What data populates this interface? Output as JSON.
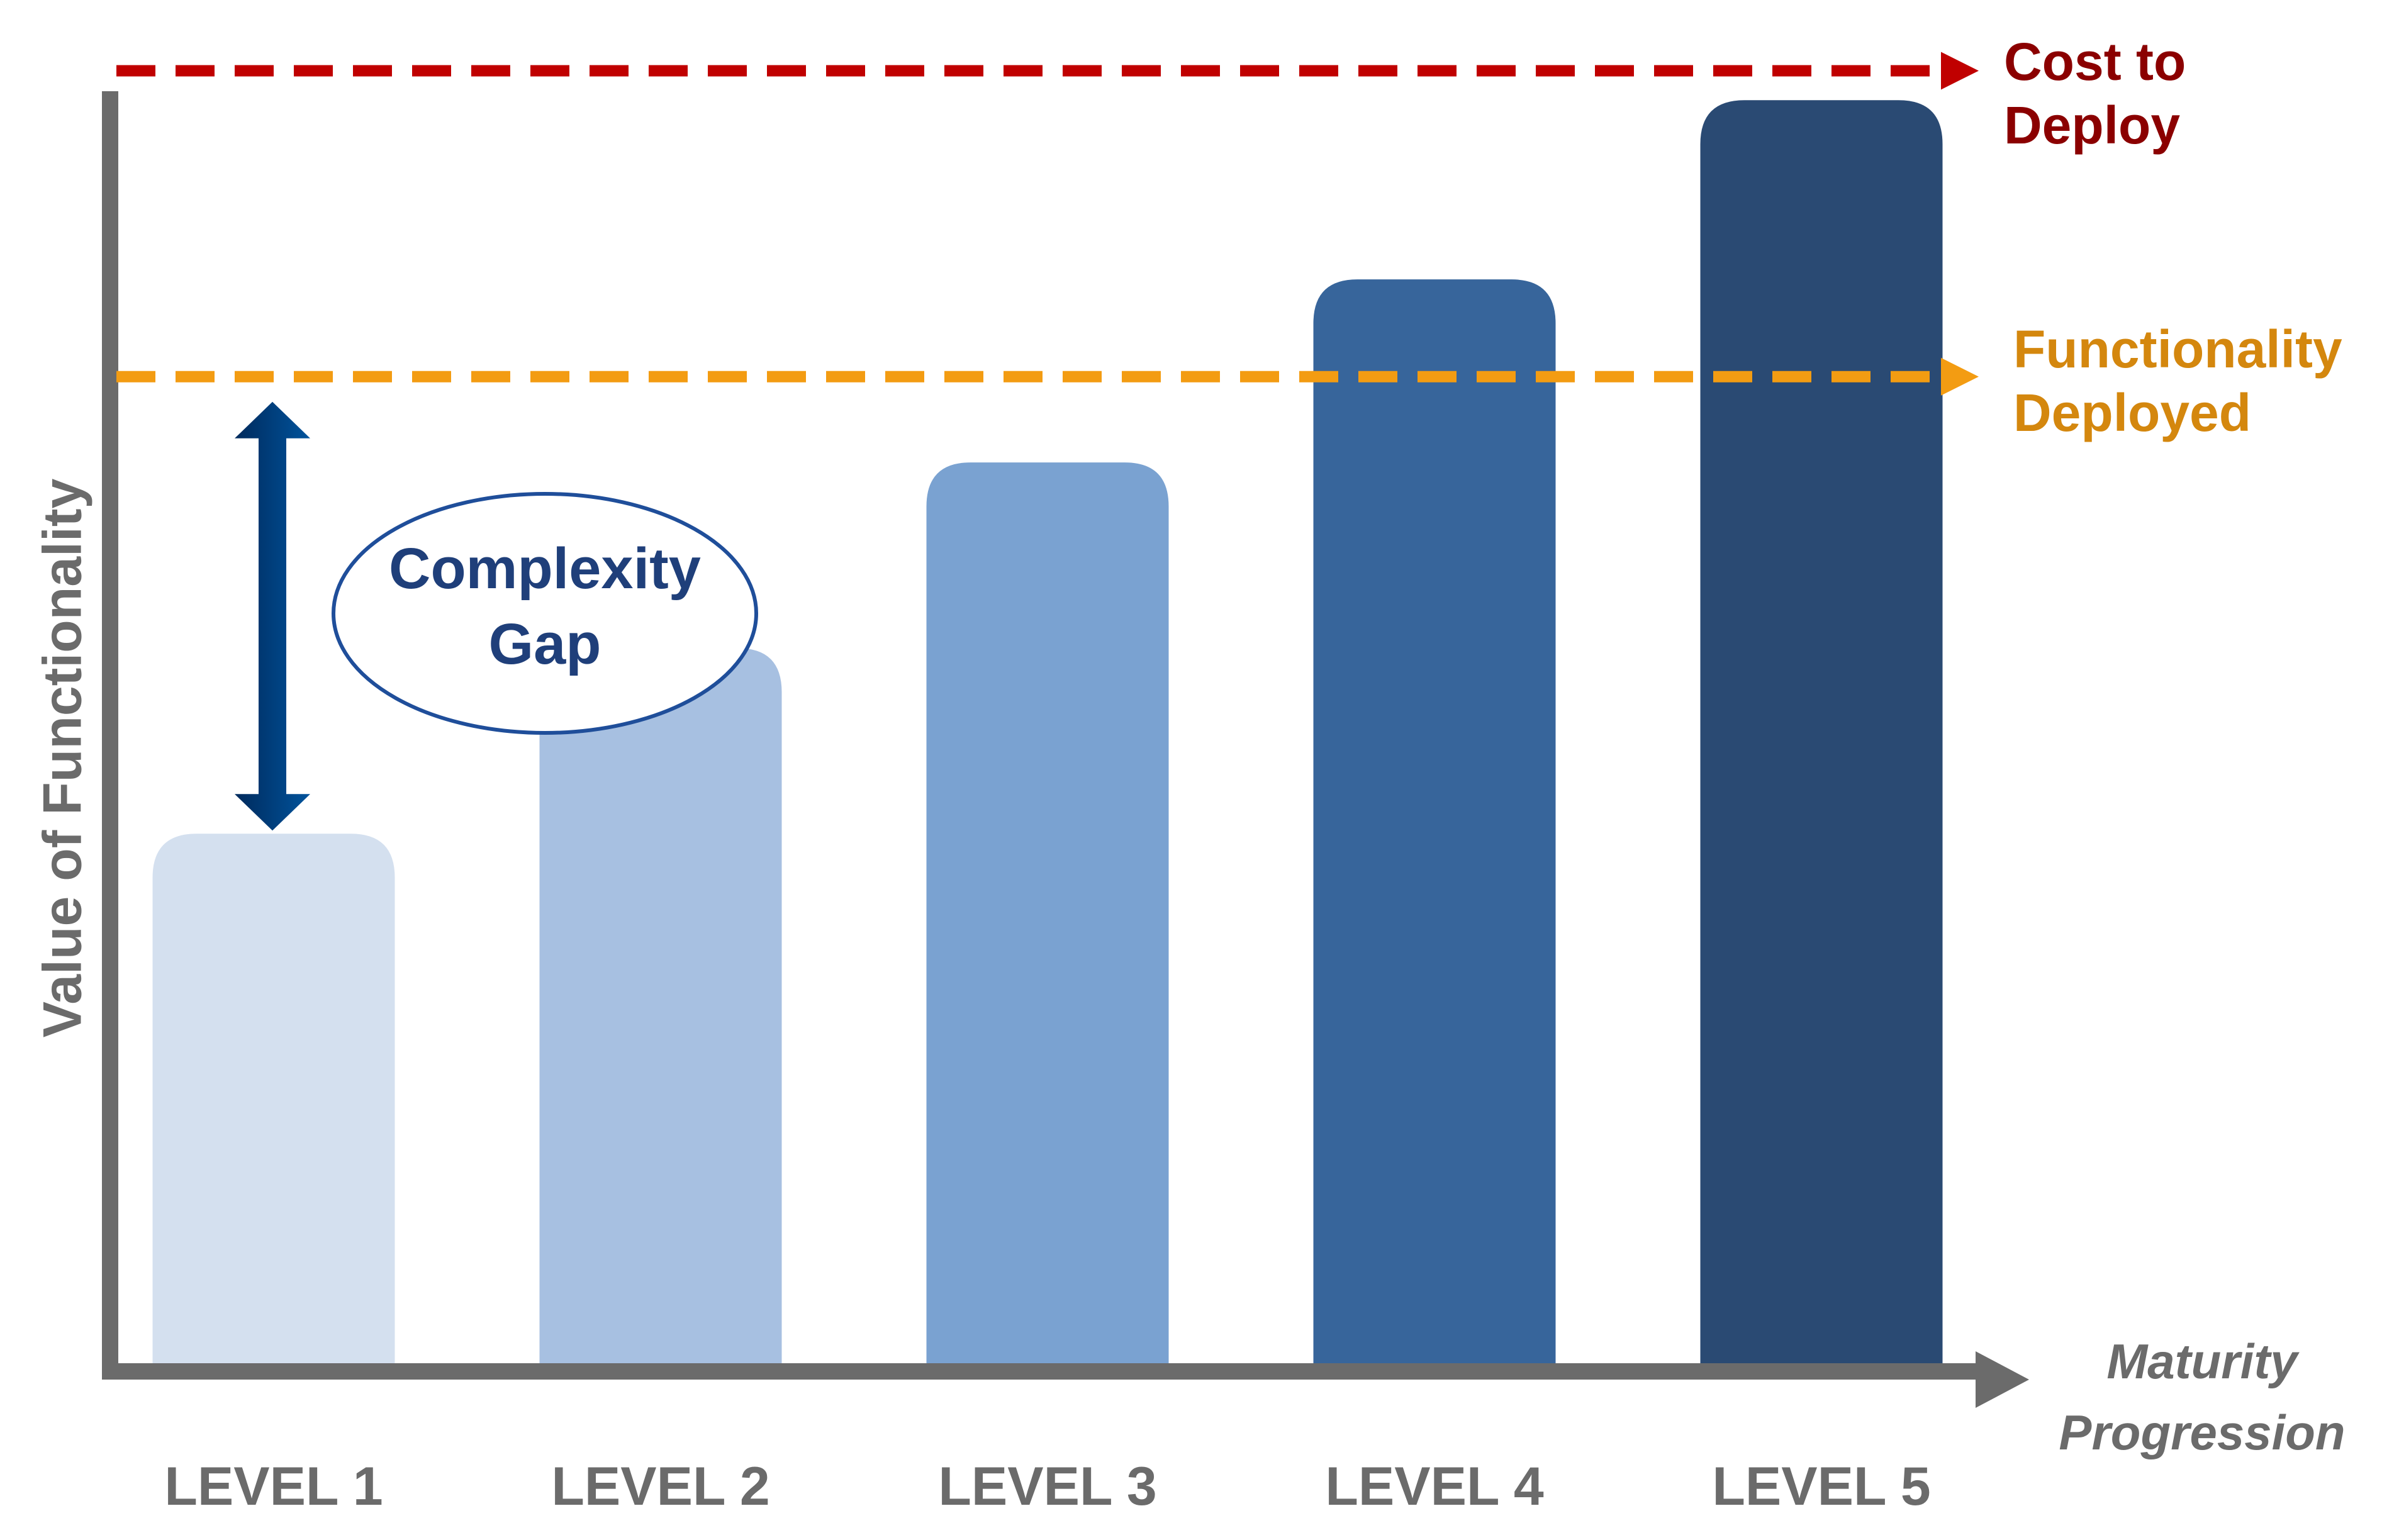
{
  "chart_data": {
    "type": "bar",
    "title": "",
    "ylabel": "Value of Functionality",
    "xlabel_lines": [
      "Maturity",
      "Progression"
    ],
    "categories": [
      "LEVEL 1",
      "LEVEL 2",
      "LEVEL 3",
      "LEVEL 4",
      "LEVEL 5"
    ],
    "values": [
      42,
      56.5,
      71,
      85.3,
      99.3
    ],
    "ylim": [
      0,
      100
    ],
    "grid": false,
    "bar_colors": [
      "#d4e0ef",
      "#a7c0e1",
      "#7aa2d1",
      "#37659b",
      "#2a4a73"
    ],
    "reference_lines": [
      {
        "label_lines": [
          "Cost to",
          "Deploy"
        ],
        "value": 101.6,
        "color": "#c00000",
        "text_color": "#8b0000"
      },
      {
        "label_lines": [
          "Functionality",
          "Deployed"
        ],
        "value": 77.7,
        "color": "#f39c12",
        "text_color": "#d4870e"
      }
    ],
    "annotation": {
      "text_lines": [
        "Complexity",
        "Gap"
      ],
      "from_value": 42,
      "to_value": 77.7,
      "color": "#003a7a"
    }
  },
  "colors": {
    "axis": "#6b6b6b",
    "tick_label": "#6b6b6b",
    "ellipse_border": "#1f4e9a",
    "ellipse_text": "#1f3f7a"
  }
}
